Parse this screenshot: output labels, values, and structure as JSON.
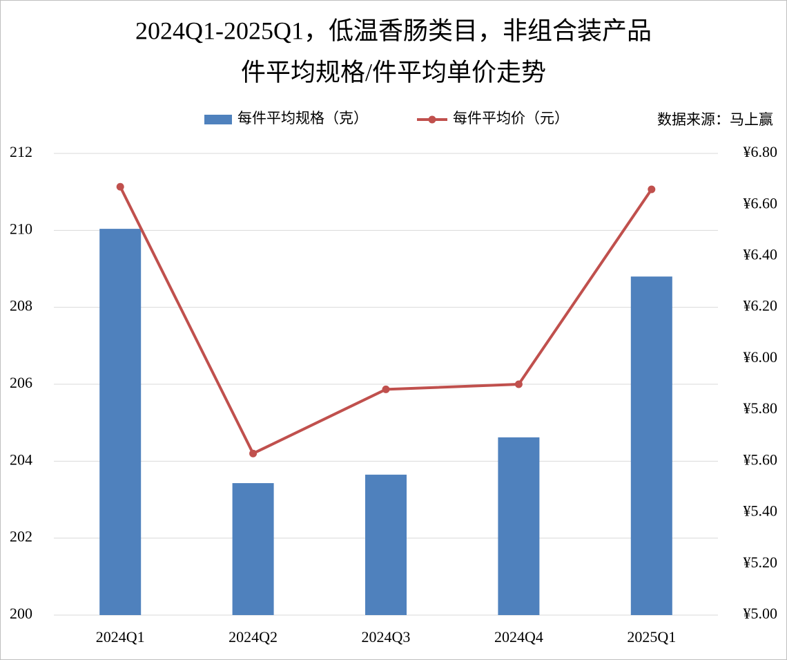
{
  "chart_data": {
    "type": "bar_line",
    "title": [
      "2024Q1-2025Q1，低温香肠类目，非组合装产品",
      "件平均规格/件平均单价走势"
    ],
    "source": "数据来源：马上赢",
    "categories": [
      "2024Q1",
      "2024Q2",
      "2024Q3",
      "2024Q4",
      "2025Q1"
    ],
    "series": [
      {
        "name": "每件平均规格（克）",
        "type": "bar",
        "color": "#4f81bd",
        "values": [
          210.04,
          203.43,
          203.65,
          204.62,
          208.8
        ]
      },
      {
        "name": "每件平均价（元）",
        "type": "line",
        "axis": "y2",
        "color": "#c0504d",
        "values": [
          6.67,
          5.63,
          5.88,
          5.9,
          6.66
        ]
      }
    ],
    "ylim": [
      200,
      212
    ],
    "yticks": [
      200,
      202,
      204,
      206,
      208,
      210,
      212
    ],
    "y2lim": [
      5.0,
      6.8
    ],
    "y2ticks": [
      {
        "value": 5.0,
        "label": "¥5.00"
      },
      {
        "value": 5.2,
        "label": "¥5.20"
      },
      {
        "value": 5.4,
        "label": "¥5.40"
      },
      {
        "value": 5.6,
        "label": "¥5.60"
      },
      {
        "value": 5.8,
        "label": "¥5.80"
      },
      {
        "value": 6.0,
        "label": "¥6.00"
      },
      {
        "value": 6.2,
        "label": "¥6.20"
      },
      {
        "value": 6.4,
        "label": "¥6.40"
      },
      {
        "value": 6.6,
        "label": "¥6.60"
      },
      {
        "value": 6.8,
        "label": "¥6.80"
      }
    ],
    "grid": true
  }
}
